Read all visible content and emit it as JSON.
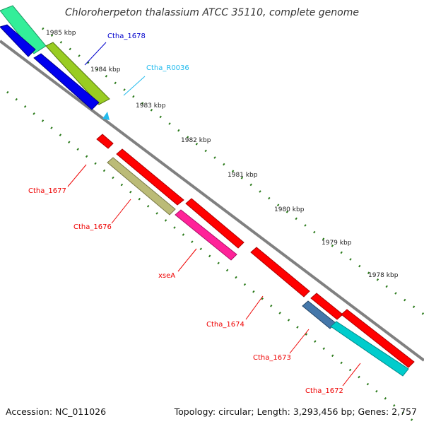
{
  "header": {
    "title": "Chloroherpeton thalassium ATCC 35110, complete genome"
  },
  "footer": {
    "accession": "Accession: NC_011026",
    "topology": "Topology: circular; Length: 3,293,456 bp; Genes: 2,757"
  },
  "ticks": [
    "1985 kbp",
    "1984 kbp",
    "1983 kbp",
    "1982 kbp",
    "1981 kbp",
    "1980 kbp",
    "1979 kbp",
    "1978 kbp"
  ],
  "gene_labels": {
    "ctha_1678": "Ctha_1678",
    "ctha_r0036": "Ctha_R0036",
    "ctha_1677": "Ctha_1677",
    "ctha_1676": "Ctha_1676",
    "xsea": "xseA",
    "ctha_1674": "Ctha_1674",
    "ctha_1673": "Ctha_1673",
    "ctha_1672": "Ctha_1672"
  },
  "colors": {
    "backbone": "#808080",
    "tick": "#2a7a1a",
    "red": "#ff0000",
    "blue": "#0000ee",
    "cyan": "#22bbcc",
    "teal": "#00cccc",
    "green": "#33ee99",
    "olive": "#99aa22",
    "khaki": "#bbbb77",
    "magenta": "#ff2299",
    "steel": "#4477aa"
  }
}
